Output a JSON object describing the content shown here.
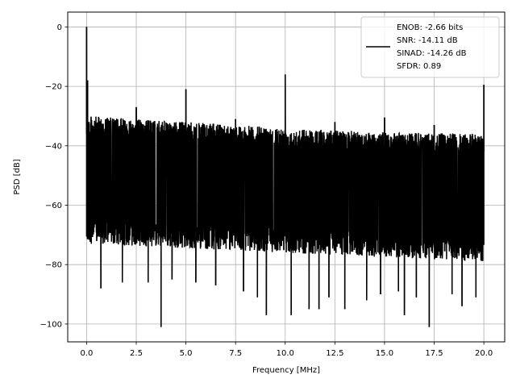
{
  "chart_data": {
    "type": "line",
    "xlabel": "Frequency [MHz]",
    "ylabel": "PSD [dB]",
    "xlim": [
      -0.95,
      21.05
    ],
    "ylim": [
      -106,
      5
    ],
    "grid": true,
    "legend_position": "top-right",
    "x_ticks": [
      0.0,
      2.5,
      5.0,
      7.5,
      10.0,
      12.5,
      15.0,
      17.5,
      20.0
    ],
    "x_tick_labels": [
      "0.0",
      "2.5",
      "5.0",
      "7.5",
      "10.0",
      "12.5",
      "15.0",
      "17.5",
      "20.0"
    ],
    "y_ticks": [
      0,
      -20,
      -40,
      -60,
      -80,
      -100
    ],
    "y_tick_labels": [
      "0",
      "−20",
      "−40",
      "−60",
      "−80",
      "−100"
    ],
    "series": [
      {
        "name": "ENOB: -2.66 bits\nSNR: -14.11 dB\nSINAD: -14.26 dB\nSFDR: 0.89",
        "color": "#000000",
        "x_range": [
          0,
          20
        ],
        "noise_upper_envelope": [
          [
            0.1,
            -30
          ],
          [
            5,
            -32
          ],
          [
            10,
            -34
          ],
          [
            15,
            -35.5
          ],
          [
            20,
            -36
          ]
        ],
        "noise_lower_envelope": [
          [
            0.1,
            -73
          ],
          [
            20,
            -79
          ]
        ],
        "spurs": [
          {
            "x": 0.0,
            "y": 0
          },
          {
            "x": 0.05,
            "y": -18
          },
          {
            "x": 2.5,
            "y": -27
          },
          {
            "x": 5.0,
            "y": -21
          },
          {
            "x": 7.5,
            "y": -31
          },
          {
            "x": 10.0,
            "y": -16
          },
          {
            "x": 12.5,
            "y": -32
          },
          {
            "x": 15.0,
            "y": -30.5
          },
          {
            "x": 17.5,
            "y": -33
          },
          {
            "x": 20.0,
            "y": -19.5
          }
        ],
        "deep_nulls": [
          {
            "x": 3.75,
            "y": -101
          },
          {
            "x": 17.25,
            "y": -101
          },
          {
            "x": 9.05,
            "y": -97
          },
          {
            "x": 10.3,
            "y": -97
          },
          {
            "x": 16.0,
            "y": -97
          },
          {
            "x": 11.2,
            "y": -95
          },
          {
            "x": 11.7,
            "y": -95
          },
          {
            "x": 13.0,
            "y": -95
          },
          {
            "x": 18.9,
            "y": -94
          },
          {
            "x": 0.72,
            "y": -88
          },
          {
            "x": 1.8,
            "y": -86
          },
          {
            "x": 3.1,
            "y": -86
          },
          {
            "x": 4.3,
            "y": -85
          },
          {
            "x": 5.5,
            "y": -86
          },
          {
            "x": 6.5,
            "y": -87
          },
          {
            "x": 7.9,
            "y": -89
          },
          {
            "x": 8.6,
            "y": -91
          },
          {
            "x": 12.2,
            "y": -91
          },
          {
            "x": 14.1,
            "y": -92
          },
          {
            "x": 14.8,
            "y": -90
          },
          {
            "x": 15.7,
            "y": -89
          },
          {
            "x": 16.6,
            "y": -91
          },
          {
            "x": 18.4,
            "y": -90
          },
          {
            "x": 19.6,
            "y": -91
          }
        ]
      }
    ],
    "legend": {
      "lines": [
        "ENOB: -2.66 bits",
        "SNR: -14.11 dB",
        "SINAD: -14.26 dB",
        "SFDR: 0.89"
      ]
    }
  }
}
